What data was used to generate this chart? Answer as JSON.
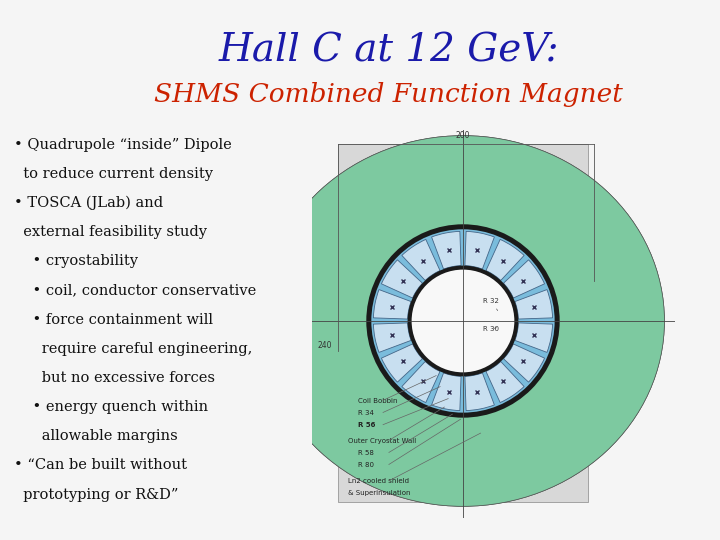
{
  "title_line1": "Hall C at 12 GeV:",
  "title_line2": "SHMS Combined Function Magnet",
  "title1_color": "#1a1aaa",
  "title2_color": "#cc2200",
  "header_bg_color": "#90EE90",
  "slide_bg_color": "#f5f5f5",
  "bullet_lines": [
    [
      1,
      "• Quadrupole “inside” Dipole"
    ],
    [
      1,
      "  to reduce current density"
    ],
    [
      1,
      "• TOSCA (JLab) and"
    ],
    [
      1,
      "  external feasibility study"
    ],
    [
      2,
      "    • cryostability"
    ],
    [
      2,
      "    • coil, conductor conservative"
    ],
    [
      2,
      "    • force containment will"
    ],
    [
      2,
      "      require careful engineering,"
    ],
    [
      2,
      "      but no excessive forces"
    ],
    [
      2,
      "    • energy quench within"
    ],
    [
      2,
      "      allowable margins"
    ],
    [
      1,
      "• “Can be built without"
    ],
    [
      1,
      "  prototyping or R&D”"
    ]
  ],
  "green_color": "#7DC9A0",
  "blue_color": "#7ABCDC",
  "dark_color": "#1a1a1a",
  "white_color": "#f8f8f8",
  "bg_rect_color": "#e0e0e0"
}
